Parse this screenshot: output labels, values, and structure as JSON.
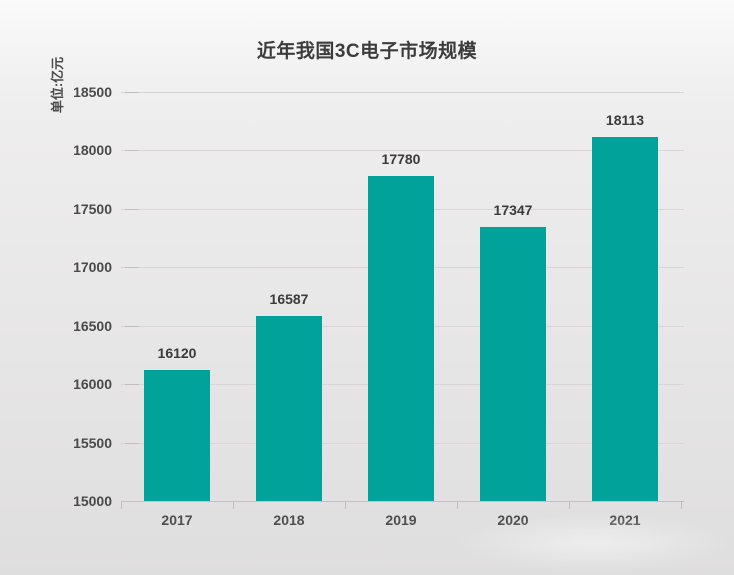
{
  "chart": {
    "title": "近年我国3C电子市场规模",
    "unit_label": "单位:亿元"
  },
  "colors": {
    "bar": "#00a29a",
    "title_text": "#3c3c3c",
    "axis_text": "#4a4a4a",
    "gridline": "#d8d7d7",
    "background_top": "#fafafa",
    "background_bottom": "#dfdede"
  },
  "chart_data": {
    "type": "bar",
    "title": "近年我国3C电子市场规模",
    "xlabel": "",
    "ylabel": "单位:亿元",
    "categories": [
      "2017",
      "2018",
      "2019",
      "2020",
      "2021"
    ],
    "values": [
      16120,
      16587,
      17780,
      17347,
      18113
    ],
    "value_labels": [
      "16120",
      "16587",
      "17780",
      "17347",
      "18113"
    ],
    "ylim": [
      15000,
      18500
    ],
    "ytick_step": 500,
    "yticks": [
      15000,
      15500,
      16000,
      16500,
      17000,
      17500,
      18000,
      18500
    ],
    "grid": true,
    "legend": false,
    "bar_color": "#00a29a"
  }
}
